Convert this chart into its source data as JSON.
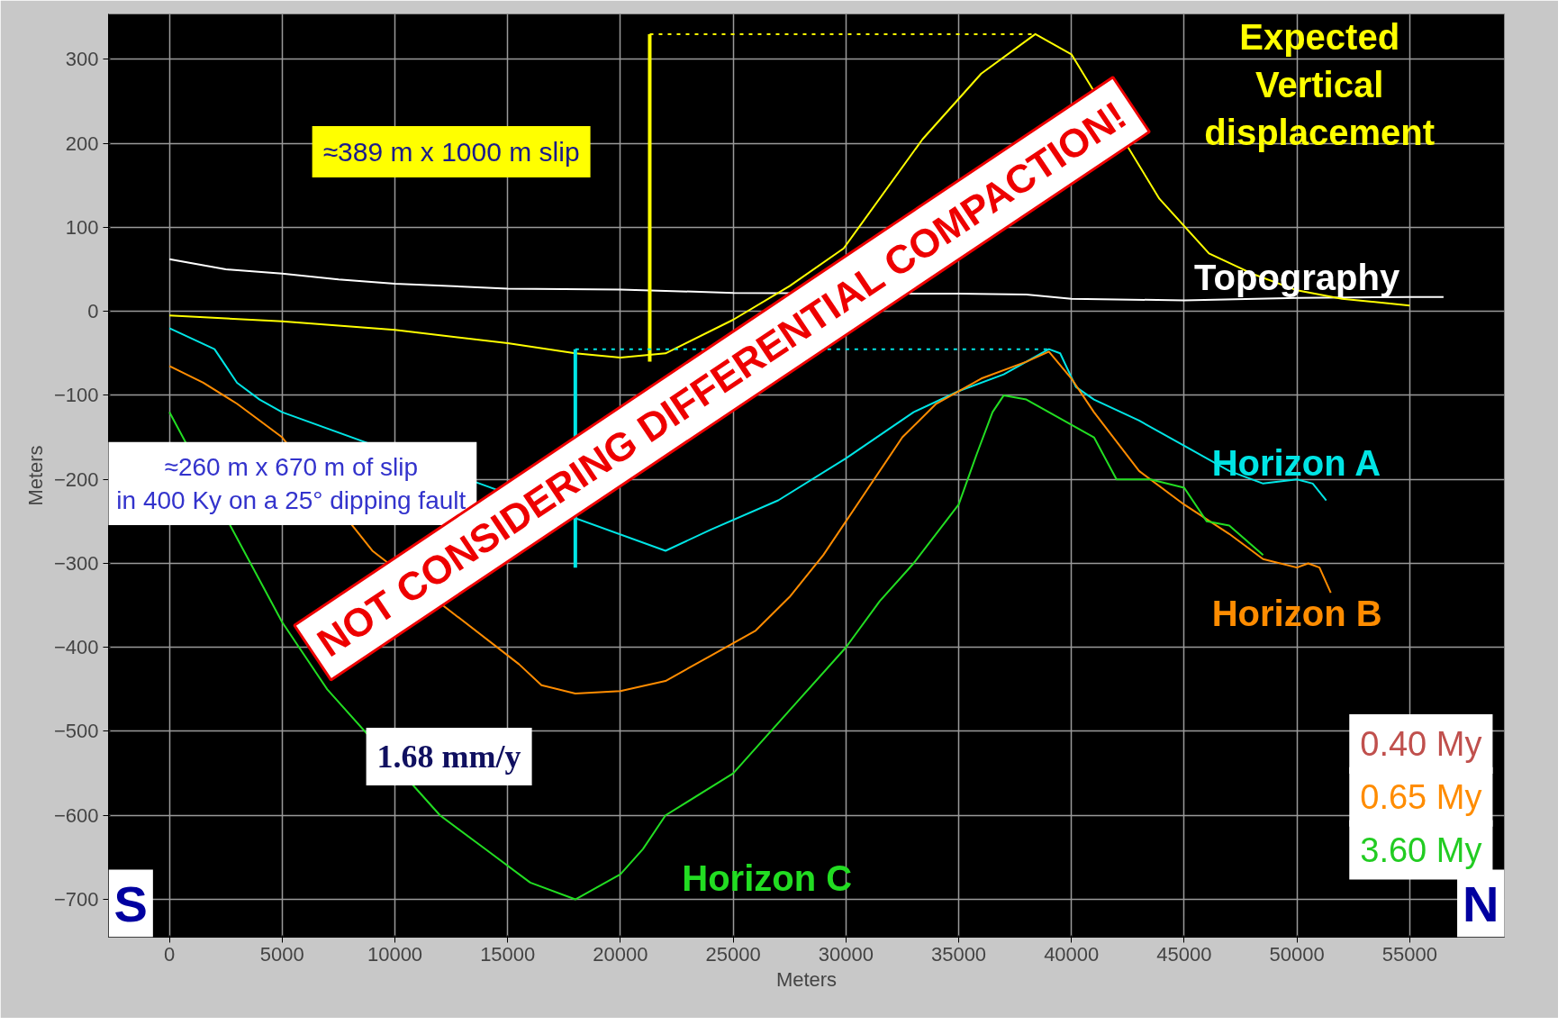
{
  "chart_data": {
    "type": "line",
    "xlabel": "Meters",
    "ylabel": "Meters",
    "xlim": [
      -2700,
      59200
    ],
    "ylim": [
      -745,
      354
    ],
    "xticks": [
      0,
      5000,
      10000,
      15000,
      20000,
      25000,
      30000,
      35000,
      40000,
      45000,
      50000,
      55000
    ],
    "yticks": [
      -700,
      -600,
      -500,
      -400,
      -300,
      -200,
      -100,
      0,
      100,
      200,
      300
    ],
    "grid": true,
    "series": [
      {
        "name": "Topography",
        "color": "#ffffff",
        "x": [
          0,
          2500,
          5000,
          7500,
          10000,
          15000,
          20000,
          25000,
          35000,
          38000,
          40000,
          45000,
          50000,
          55000,
          56500
        ],
        "values": [
          62,
          50,
          45,
          38,
          33,
          27,
          26,
          22,
          21,
          20,
          15,
          13,
          16,
          17,
          17
        ]
      },
      {
        "name": "Expected\nVertical\ndisplacement",
        "color": "#ffff00",
        "x": [
          0,
          5000,
          10000,
          15000,
          18000,
          20000,
          22000,
          25000,
          27500,
          29900,
          33400,
          36000,
          38400,
          40000,
          43900,
          46100,
          48000,
          50000,
          52000,
          55000
        ],
        "values": [
          -5,
          -12,
          -22,
          -38,
          -50,
          -55,
          -50,
          -10,
          30,
          75,
          205,
          283,
          330,
          306,
          134,
          69,
          45,
          25,
          15,
          7
        ]
      },
      {
        "name": "Horizon A",
        "color": "#00e5e5",
        "x": [
          0,
          2000,
          3000,
          4000,
          5000,
          22000,
          24000,
          27000,
          30000,
          33000,
          35000,
          37000,
          39000,
          39500,
          40200,
          41000,
          43000,
          45000,
          47000,
          48500,
          50000,
          50700,
          51300
        ],
        "values": [
          -20,
          -45,
          -85,
          -105,
          -120,
          -285,
          -260,
          -225,
          -175,
          -120,
          -95,
          -75,
          -45,
          -50,
          -90,
          -105,
          -130,
          -160,
          -190,
          -205,
          -200,
          -205,
          -225
        ]
      },
      {
        "name": "Horizon B",
        "color": "#ff8c00",
        "x": [
          0,
          1500,
          3000,
          5000,
          9000,
          15500,
          16500,
          18000,
          20000,
          22000,
          24000,
          26000,
          27500,
          29000,
          31000,
          32500,
          34000,
          36000,
          38000,
          39000,
          40000,
          41000,
          43000,
          45000,
          47000,
          48500,
          50000,
          50500,
          51000,
          51500
        ],
        "values": [
          -65,
          -85,
          -110,
          -150,
          -285,
          -420,
          -445,
          -455,
          -452,
          -440,
          -410,
          -380,
          -340,
          -290,
          -210,
          -150,
          -110,
          -80,
          -60,
          -48,
          -80,
          -120,
          -190,
          -230,
          -265,
          -295,
          -305,
          -300,
          -305,
          -335
        ]
      },
      {
        "name": "Horizon C",
        "color": "#22dd22",
        "x": [
          0,
          5000,
          7000,
          11500,
          12000,
          14000,
          16000,
          18000,
          20000,
          21000,
          22000,
          25000,
          28000,
          30000,
          31500,
          33000,
          35000,
          35800,
          36500,
          37000,
          38000,
          40000,
          41000,
          42000,
          43500,
          45000,
          46000,
          47000,
          48500
        ],
        "values": [
          -120,
          -370,
          -450,
          -585,
          -600,
          -640,
          -680,
          -700,
          -670,
          -640,
          -600,
          -550,
          -460,
          -400,
          -345,
          -300,
          -230,
          -170,
          -120,
          -100,
          -105,
          -135,
          -150,
          -200,
          -200,
          -210,
          -250,
          -255,
          -290
        ]
      },
      {
        "color": "#ffff00",
        "x": [
          21300,
          21300
        ],
        "values": [
          -60,
          330
        ]
      },
      {
        "color": "#ffff00",
        "x": [
          21300,
          38400
        ],
        "values": [
          330,
          330
        ],
        "line_style": "dotted"
      },
      {
        "color": "#00e5e5",
        "x": [
          18000,
          18000
        ],
        "values": [
          -45,
          -305
        ]
      },
      {
        "color": "#00e5e5",
        "x": [
          18000,
          39000
        ],
        "values": [
          -45,
          -45
        ],
        "line_style": "dotted"
      }
    ],
    "annotations": [
      "≈389 m x 1000 m slip",
      "≈260 m x 670 m of slip\nin 400 Ky on a 25° dipping fault",
      "1.68 mm/y",
      "NOT CONSIDERING DIFFERENTIAL COMPACTION!",
      "0.40 My",
      "0.65 My",
      "3.60 My",
      "S",
      "N"
    ]
  }
}
